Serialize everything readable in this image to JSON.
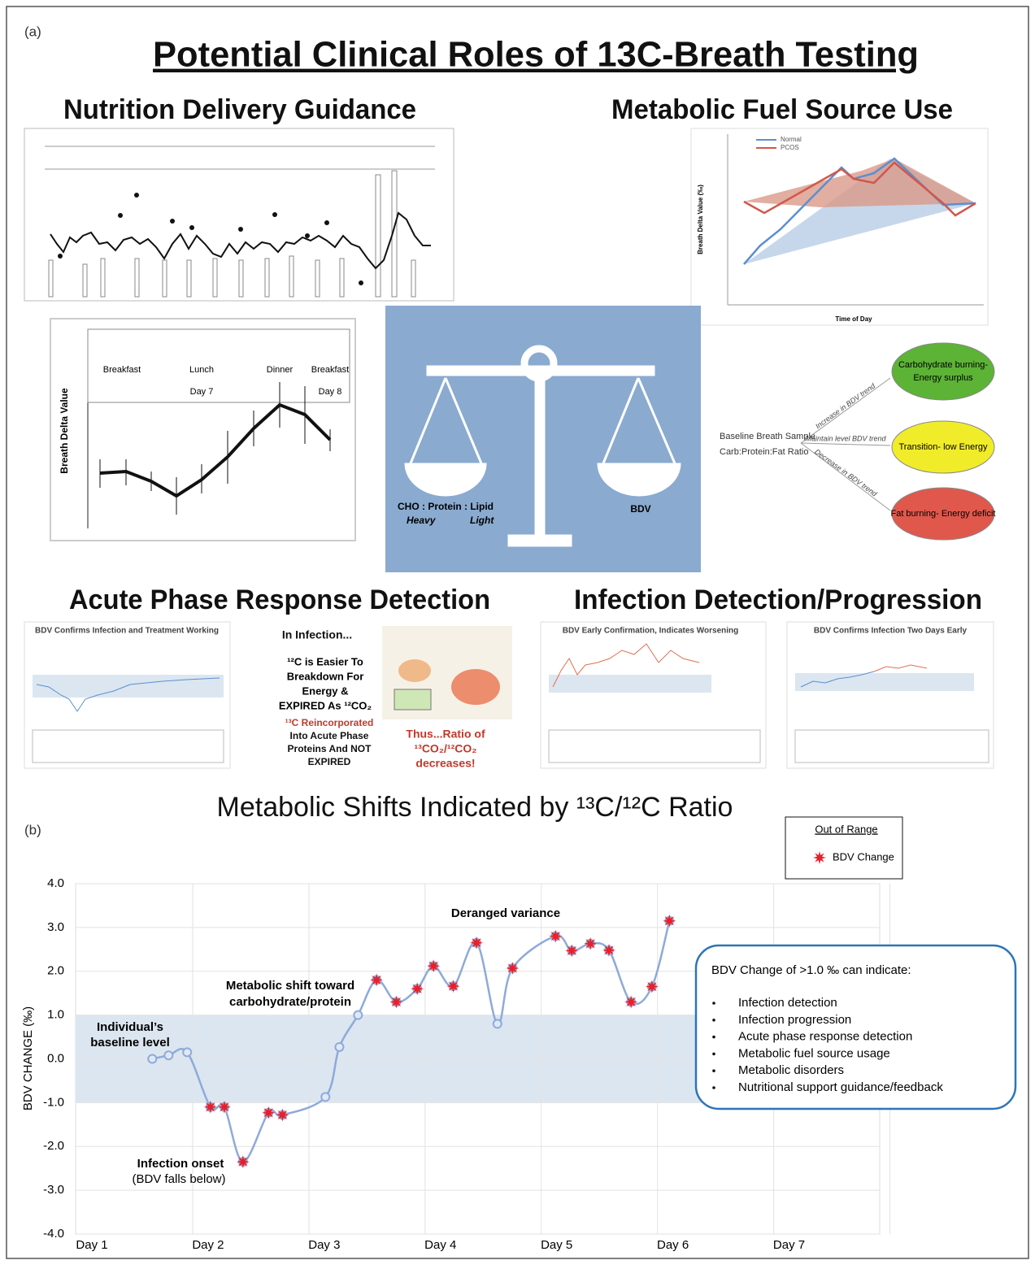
{
  "panel_a": {
    "label": "(a)",
    "title": "Potential Clinical Roles of 13C-Breath Testing",
    "headings": [
      "Nutrition Delivery Guidance",
      "Metabolic Fuel Source Use",
      "Acute Phase Response Detection",
      "Infection Detection/Progression"
    ],
    "balance": {
      "ratio": "CHO : Protein : Lipid",
      "heavy": "Heavy",
      "light": "Light",
      "right": "BDV"
    },
    "flow": {
      "source": [
        "Baseline Breath Sample",
        "Carb:Protein:Fat Ratio"
      ],
      "branches": [
        "Increase in BDV trend",
        "Maintain level BDV trend",
        "Decrease in BDV trend"
      ],
      "outcomes": [
        [
          "Carbohydrate burning-",
          "Energy surplus"
        ],
        [
          "Transition- low Energy"
        ],
        [
          "Fat burning- Energy deficit"
        ]
      ]
    },
    "fuel_chart": {
      "legend": [
        "Normal",
        "PCOS"
      ],
      "xlabel": "Time of Day",
      "ylabel": "Breath Delta Value (‰)"
    },
    "day7_chart": {
      "ylabel": "Breath Delta Value",
      "meals": [
        "Breakfast",
        "Lunch",
        "Dinner",
        "Breakfast"
      ],
      "days": [
        "Day 7",
        "Day 8"
      ]
    },
    "infection_text": {
      "head": "In Infection...",
      "left1": [
        "¹²C is Easier To",
        "Breakdown For",
        "Energy &",
        "EXPIRED As ¹²CO₂"
      ],
      "left2": [
        "¹³C Reincorporated",
        "Into Acute Phase",
        "Proteins And NOT",
        "EXPIRED"
      ],
      "right": [
        "Thus...Ratio of",
        "¹³CO₂/¹²CO₂",
        "decreases!"
      ]
    },
    "thumb_titles": [
      "BDV Confirms Infection and Treatment Working",
      "BDV Early Confirmation, Indicates Worsening",
      "BDV Confirms Infection Two Days Early"
    ]
  },
  "chart_data": {
    "type": "line",
    "panel_label": "(b)",
    "title": "Metabolic Shifts Indicated by ¹³C/¹²C Ratio",
    "x": [
      1.52,
      1.66,
      1.82,
      2.02,
      2.14,
      2.3,
      2.52,
      2.64,
      3.01,
      3.13,
      3.29,
      3.45,
      3.62,
      3.8,
      3.94,
      4.11,
      4.31,
      4.49,
      4.62,
      4.99,
      5.13,
      5.29,
      5.45,
      5.64,
      5.82,
      5.97
    ],
    "series": [
      {
        "color": "#8eaadb",
        "mode": "line",
        "values": [
          0.0,
          0.08,
          0.15,
          -1.1,
          -1.1,
          -2.35,
          -1.23,
          -1.28,
          -0.87,
          0.27,
          1.0,
          1.8,
          1.3,
          1.6,
          2.12,
          1.66,
          2.65,
          0.8,
          2.07,
          2.8,
          2.47,
          2.63,
          2.48,
          1.3,
          1.65,
          3.15
        ]
      },
      {
        "name": "BDV Change",
        "color": "#e8202a",
        "mode": "markers",
        "values": [
          null,
          null,
          null,
          -1.1,
          -1.1,
          -2.35,
          -1.23,
          -1.28,
          null,
          null,
          null,
          1.8,
          1.3,
          1.6,
          2.12,
          1.66,
          2.65,
          null,
          2.07,
          2.8,
          2.47,
          2.63,
          2.48,
          1.3,
          1.65,
          3.15
        ]
      }
    ],
    "xlim": [
      0.86,
      7.78
    ],
    "xticks": [
      {
        "value": 1,
        "label": "Day 1"
      },
      {
        "value": 2,
        "label": "Day 2"
      },
      {
        "value": 3,
        "label": "Day 3"
      },
      {
        "value": 4,
        "label": "Day 4"
      },
      {
        "value": 5,
        "label": "Day 5"
      },
      {
        "value": 6,
        "label": "Day 6"
      },
      {
        "value": 7,
        "label": "Day 7"
      }
    ],
    "ylim": [
      -4,
      4
    ],
    "yticks": [
      {
        "value": 4,
        "label": "4.0"
      },
      {
        "value": 3,
        "label": "3.0"
      },
      {
        "value": 2,
        "label": "2.0"
      },
      {
        "value": 1,
        "label": "1.0"
      },
      {
        "value": 0,
        "label": "0.0"
      },
      {
        "value": -1,
        "label": "-1.0"
      },
      {
        "value": -2,
        "label": "-2.0"
      },
      {
        "value": -3,
        "label": "-3.0"
      },
      {
        "value": -4,
        "label": "-4.0"
      }
    ],
    "ylabel": "BDV CHANGE (‰)",
    "band": [
      -1,
      1
    ],
    "band_color": "#dce6f0",
    "grid": true,
    "legend": {
      "title": "Out of Range",
      "position": "upper right"
    },
    "annotations": [
      "Deranged variance",
      "Metabolic shift toward",
      "carbohydrate/protein",
      "Individual’s",
      "baseline level",
      "Infection onset",
      "(BDV falls below)"
    ],
    "note": {
      "heading": "BDV Change of >1.0 ‰ can indicate:",
      "items": [
        "Infection detection",
        "Infection progression",
        "Acute phase response detection",
        "Metabolic fuel source usage",
        "Metabolic disorders",
        "Nutritional support guidance/feedback"
      ]
    }
  }
}
